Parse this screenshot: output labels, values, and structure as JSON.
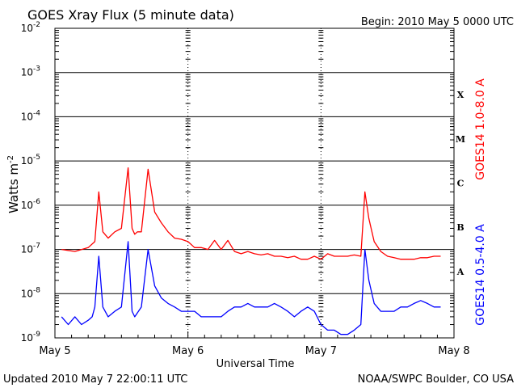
{
  "header": {
    "title": "GOES Xray Flux (5 minute data)",
    "begin": "Begin:  2010 May 5 0000 UTC"
  },
  "footer": {
    "updated": "Updated 2010 May  7 22:00:11 UTC",
    "source": "NOAA/SWPC Boulder, CO USA"
  },
  "colors": {
    "long_channel": "#ff0000",
    "short_channel": "#0000ff",
    "grid": "#000000"
  },
  "chart_data": {
    "type": "line",
    "title": "GOES Xray Flux (5 minute data)",
    "xlabel": "Universal Time",
    "ylabel_base": "Watts m",
    "ylabel_exp": "-2",
    "yscale": "log",
    "ylim": [
      1e-09,
      0.01
    ],
    "xlim": [
      0,
      3
    ],
    "x_ticks": [
      "May 5",
      "May 6",
      "May 7",
      "May 8"
    ],
    "y_ticks": [
      {
        "base": "10",
        "exp": "-9",
        "value": 1e-09
      },
      {
        "base": "10",
        "exp": "-8",
        "value": 1e-08
      },
      {
        "base": "10",
        "exp": "-7",
        "value": 1e-07
      },
      {
        "base": "10",
        "exp": "-6",
        "value": 1e-06
      },
      {
        "base": "10",
        "exp": "-5",
        "value": 1e-05
      },
      {
        "base": "10",
        "exp": "-4",
        "value": 0.0001
      },
      {
        "base": "10",
        "exp": "-3",
        "value": 0.001
      },
      {
        "base": "10",
        "exp": "-2",
        "value": 0.01
      }
    ],
    "flare_classes": [
      {
        "label": "A",
        "value": 1e-08
      },
      {
        "label": "B",
        "value": 1e-07
      },
      {
        "label": "C",
        "value": 1e-06
      },
      {
        "label": "M",
        "value": 1e-05
      },
      {
        "label": "X",
        "value": 0.0001
      }
    ],
    "grid": true,
    "series": [
      {
        "name": "GOES14 1.0-8.0 A",
        "color": "#ff0000",
        "x": [
          0.05,
          0.15,
          0.25,
          0.3,
          0.33,
          0.36,
          0.4,
          0.45,
          0.5,
          0.55,
          0.58,
          0.6,
          0.62,
          0.65,
          0.7,
          0.75,
          0.8,
          0.85,
          0.9,
          0.95,
          1.0,
          1.05,
          1.1,
          1.15,
          1.2,
          1.25,
          1.3,
          1.35,
          1.4,
          1.45,
          1.5,
          1.55,
          1.6,
          1.65,
          1.7,
          1.75,
          1.8,
          1.85,
          1.9,
          1.95,
          2.0,
          2.05,
          2.1,
          2.15,
          2.2,
          2.25,
          2.3,
          2.33,
          2.36,
          2.4,
          2.45,
          2.5,
          2.55,
          2.6,
          2.65,
          2.7,
          2.75,
          2.8,
          2.85,
          2.9
        ],
        "y": [
          1e-07,
          9e-08,
          1.1e-07,
          1.5e-07,
          2e-06,
          2.5e-07,
          1.8e-07,
          2.5e-07,
          3e-07,
          7e-06,
          3e-07,
          2.2e-07,
          2.5e-07,
          2.5e-07,
          6.5e-06,
          7e-07,
          4e-07,
          2.5e-07,
          1.8e-07,
          1.7e-07,
          1.5e-07,
          1.1e-07,
          1.1e-07,
          1e-07,
          1.6e-07,
          1e-07,
          1.6e-07,
          9e-08,
          8e-08,
          9e-08,
          8e-08,
          7.5e-08,
          8e-08,
          7e-08,
          7e-08,
          6.5e-08,
          7e-08,
          6e-08,
          6e-08,
          7e-08,
          6e-08,
          8e-08,
          7e-08,
          7e-08,
          7e-08,
          7.5e-08,
          7e-08,
          2e-06,
          5e-07,
          1.5e-07,
          9e-08,
          7e-08,
          6.5e-08,
          6e-08,
          6e-08,
          6e-08,
          6.5e-08,
          6.5e-08,
          7e-08,
          7e-08
        ]
      },
      {
        "name": "GOES14 0.5-4.0 A",
        "color": "#0000ff",
        "x": [
          0.05,
          0.1,
          0.15,
          0.2,
          0.25,
          0.28,
          0.3,
          0.33,
          0.36,
          0.4,
          0.45,
          0.5,
          0.55,
          0.58,
          0.6,
          0.65,
          0.7,
          0.75,
          0.8,
          0.85,
          0.9,
          0.95,
          1.0,
          1.05,
          1.1,
          1.15,
          1.2,
          1.25,
          1.3,
          1.35,
          1.4,
          1.45,
          1.5,
          1.55,
          1.6,
          1.65,
          1.7,
          1.75,
          1.8,
          1.85,
          1.9,
          1.95,
          2.0,
          2.05,
          2.1,
          2.15,
          2.2,
          2.25,
          2.3,
          2.33,
          2.36,
          2.4,
          2.45,
          2.5,
          2.55,
          2.6,
          2.65,
          2.7,
          2.75,
          2.8,
          2.85,
          2.9
        ],
        "y": [
          3e-09,
          2e-09,
          3e-09,
          2e-09,
          2.5e-09,
          3e-09,
          5e-09,
          7e-08,
          5e-09,
          3e-09,
          4e-09,
          5e-09,
          1.5e-07,
          4e-09,
          3e-09,
          5e-09,
          1e-07,
          1.5e-08,
          8e-09,
          6e-09,
          5e-09,
          4e-09,
          4e-09,
          4e-09,
          3e-09,
          3e-09,
          3e-09,
          3e-09,
          4e-09,
          5e-09,
          5e-09,
          6e-09,
          5e-09,
          5e-09,
          5e-09,
          6e-09,
          5e-09,
          4e-09,
          3e-09,
          4e-09,
          5e-09,
          4e-09,
          2e-09,
          1.5e-09,
          1.5e-09,
          1.2e-09,
          1.2e-09,
          1.5e-09,
          2e-09,
          1e-07,
          2e-08,
          6e-09,
          4e-09,
          4e-09,
          4e-09,
          5e-09,
          5e-09,
          6e-09,
          7e-09,
          6e-09,
          5e-09,
          5e-09
        ]
      }
    ]
  }
}
